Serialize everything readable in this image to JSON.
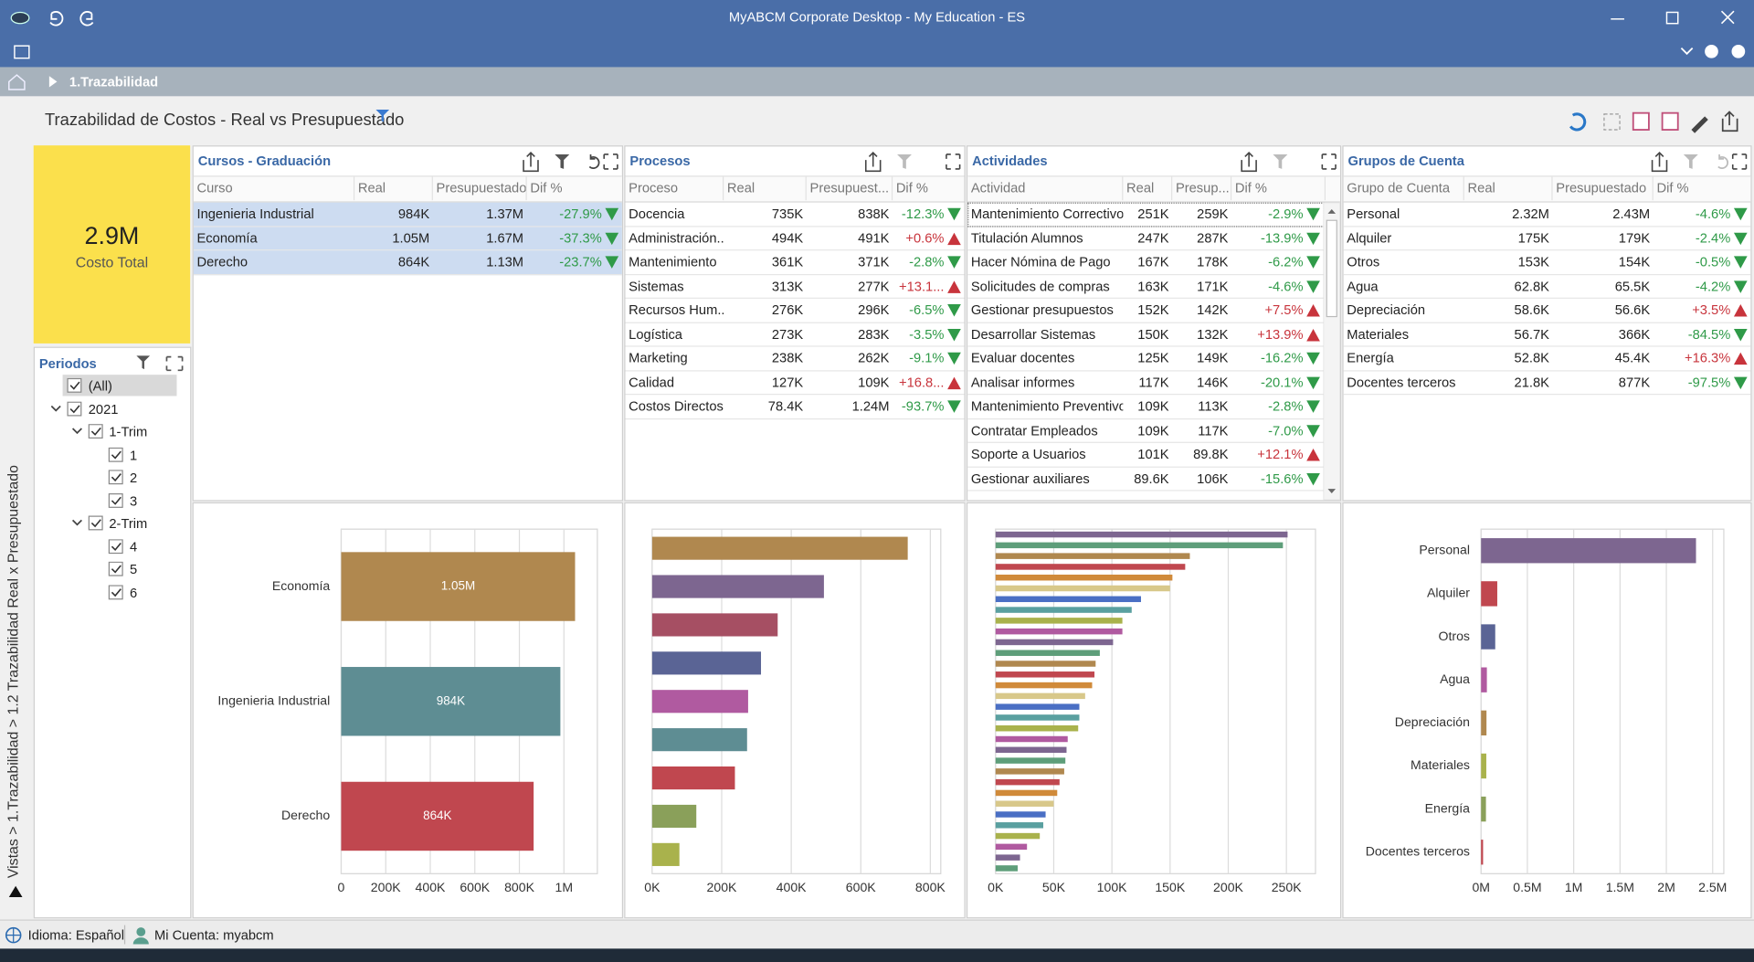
{
  "window": {
    "title": "MyABCM Corporate Desktop - My Education - ES"
  },
  "breadcrumb": "1.Trazabilidad",
  "side_path": "Vistas > 1.Trazabilidad > 1.2 Trazabilidad Real x Presupuestado",
  "dashboard_title": "Trazabilidad de Costos - Real vs Presupuestado",
  "kpi": {
    "value": "2.9M",
    "label": "Costo Total"
  },
  "periods": {
    "title": "Periodos",
    "items": [
      {
        "label": "(All)"
      },
      {
        "label": "2021",
        "children": [
          {
            "label": "1-Trim",
            "children": [
              {
                "label": "1"
              },
              {
                "label": "2"
              },
              {
                "label": "3"
              }
            ]
          },
          {
            "label": "2-Trim",
            "children": [
              {
                "label": "4"
              },
              {
                "label": "5"
              },
              {
                "label": "6"
              }
            ]
          }
        ]
      }
    ]
  },
  "tables": [
    {
      "title": "Cursos - Graduación",
      "columns": [
        "Curso",
        "Real",
        "Presupuestado",
        "Dif %"
      ],
      "rows": [
        [
          "Ingenieria Industrial",
          "984K",
          "1.37M",
          "-27.9%"
        ],
        [
          "Economía",
          "1.05M",
          "1.67M",
          "-37.3%"
        ],
        [
          "Derecho",
          "864K",
          "1.13M",
          "-23.7%"
        ]
      ]
    },
    {
      "title": "Procesos",
      "columns": [
        "Proceso",
        "Real",
        "Presupuest...",
        "Dif %"
      ],
      "rows": [
        [
          "Docencia",
          "735K",
          "838K",
          "-12.3%"
        ],
        [
          "Administración...",
          "494K",
          "491K",
          "+0.6%"
        ],
        [
          "Mantenimiento",
          "361K",
          "371K",
          "-2.8%"
        ],
        [
          "Sistemas",
          "313K",
          "277K",
          "+13.1..."
        ],
        [
          "Recursos Hum...",
          "276K",
          "296K",
          "-6.5%"
        ],
        [
          "Logística",
          "273K",
          "283K",
          "-3.5%"
        ],
        [
          "Marketing",
          "238K",
          "262K",
          "-9.1%"
        ],
        [
          "Calidad",
          "127K",
          "109K",
          "+16.8..."
        ],
        [
          "Costos Directos",
          "78.4K",
          "1.24M",
          "-93.7%"
        ]
      ]
    },
    {
      "title": "Actividades",
      "columns": [
        "Actividad",
        "Real",
        "Presup...",
        "Dif %"
      ],
      "rows": [
        [
          "Mantenimiento Correctivo",
          "251K",
          "259K",
          "-2.9%"
        ],
        [
          "Titulación Alumnos",
          "247K",
          "287K",
          "-13.9%"
        ],
        [
          "Hacer Nómina de Pago",
          "167K",
          "178K",
          "-6.2%"
        ],
        [
          "Solicitudes de compras",
          "163K",
          "171K",
          "-4.6%"
        ],
        [
          "Gestionar presupuestos",
          "152K",
          "142K",
          "+7.5%"
        ],
        [
          "Desarrollar Sistemas",
          "150K",
          "132K",
          "+13.9%"
        ],
        [
          "Evaluar docentes",
          "125K",
          "149K",
          "-16.2%"
        ],
        [
          "Analisar informes",
          "117K",
          "146K",
          "-20.1%"
        ],
        [
          "Mantenimiento Preventivo",
          "109K",
          "113K",
          "-2.8%"
        ],
        [
          "Contratar Empleados",
          "109K",
          "117K",
          "-7.0%"
        ],
        [
          "Soporte a Usuarios",
          "101K",
          "89.8K",
          "+12.1%"
        ],
        [
          "Gestionar auxiliares",
          "89.6K",
          "106K",
          "-15.6%"
        ]
      ]
    },
    {
      "title": "Grupos de Cuenta",
      "columns": [
        "Grupo de Cuenta",
        "Real",
        "Presupuestado",
        "Dif %"
      ],
      "rows": [
        [
          "Personal",
          "2.32M",
          "2.43M",
          "-4.6%"
        ],
        [
          "Alquiler",
          "175K",
          "179K",
          "-2.4%"
        ],
        [
          "Otros",
          "153K",
          "154K",
          "-0.5%"
        ],
        [
          "Agua",
          "62.8K",
          "65.5K",
          "-4.2%"
        ],
        [
          "Depreciación",
          "58.6K",
          "56.6K",
          "+3.5%"
        ],
        [
          "Materiales",
          "56.7K",
          "366K",
          "-84.5%"
        ],
        [
          "Energía",
          "52.8K",
          "45.4K",
          "+16.3%"
        ],
        [
          "Docentes terceros",
          "21.8K",
          "877K",
          "-97.5%"
        ]
      ]
    }
  ],
  "chart_data": [
    {
      "type": "bar",
      "orientation": "horizontal",
      "categories": [
        "Economía",
        "Ingenieria Industrial",
        "Derecho"
      ],
      "values": [
        1050000,
        984000,
        864000
      ],
      "value_labels": [
        "1.05M",
        "984K",
        "864K"
      ],
      "colors": [
        "#b0884f",
        "#5e8d93",
        "#c0474f"
      ],
      "xlim": [
        0,
        1150000
      ],
      "xticks": [
        0,
        {
          "value": 200000,
          "label": "200K"
        },
        {
          "value": 400000,
          "label": "400K"
        },
        {
          "value": 600000,
          "label": "600K"
        },
        {
          "value": 800000,
          "label": "800K"
        },
        {
          "value": 1000000,
          "label": "1M"
        }
      ],
      "grid": true
    },
    {
      "type": "bar",
      "orientation": "horizontal",
      "values": [
        735000,
        494000,
        361000,
        313000,
        276000,
        273000,
        238000,
        127000,
        78400
      ],
      "colors": [
        "#b0884f",
        "#7d6690",
        "#a64f63",
        "#5a6495",
        "#b05aa0",
        "#5e8d93",
        "#c0474f",
        "#8aa05a",
        "#a9b24c"
      ],
      "xlim": [
        0,
        830000
      ],
      "xticks": [
        {
          "value": 0,
          "label": "0K"
        },
        {
          "value": 200000,
          "label": "200K"
        },
        {
          "value": 400000,
          "label": "400K"
        },
        {
          "value": 600000,
          "label": "600K"
        },
        {
          "value": 800000,
          "label": "800K"
        }
      ],
      "grid": true
    },
    {
      "type": "bar",
      "orientation": "horizontal",
      "values": [
        251000,
        247000,
        167000,
        163000,
        152000,
        150000,
        125000,
        117000,
        109000,
        109000,
        101000,
        89600,
        86000,
        85000,
        83000,
        77000,
        72000,
        72000,
        71000,
        62000,
        61000,
        60000,
        59000,
        55000,
        53000,
        50000,
        43000,
        41000,
        38000,
        27000,
        21000,
        19000
      ],
      "palette": [
        "#7d6690",
        "#5e9e7a",
        "#b0884f",
        "#c0474f",
        "#d08a3a",
        "#d8c88a",
        "#4a6fc4",
        "#5aa0a0",
        "#a9b24c",
        "#b05aa0"
      ],
      "xlim": [
        0,
        275000
      ],
      "xticks": [
        {
          "value": 0,
          "label": "0K"
        },
        {
          "value": 50000,
          "label": "50K"
        },
        {
          "value": 100000,
          "label": "100K"
        },
        {
          "value": 150000,
          "label": "150K"
        },
        {
          "value": 200000,
          "label": "200K"
        },
        {
          "value": 250000,
          "label": "250K"
        }
      ],
      "grid": true
    },
    {
      "type": "bar",
      "orientation": "horizontal",
      "categories": [
        "Personal",
        "Alquiler",
        "Otros",
        "Agua",
        "Depreciación",
        "Materiales",
        "Energía",
        "Docentes terceros"
      ],
      "values": [
        2320000,
        175000,
        153000,
        62800,
        58600,
        56700,
        52800,
        21800
      ],
      "colors": [
        "#7d6690",
        "#c0474f",
        "#5a6495",
        "#b05aa0",
        "#b0884f",
        "#a9b24c",
        "#8aa05a",
        "#c0474f"
      ],
      "xlim": [
        0,
        2620000
      ],
      "xticks": [
        {
          "value": 0,
          "label": "0M"
        },
        {
          "value": 500000,
          "label": "0.5M"
        },
        {
          "value": 1000000,
          "label": "1M"
        },
        {
          "value": 1500000,
          "label": "1.5M"
        },
        {
          "value": 2000000,
          "label": "2M"
        },
        {
          "value": 2500000,
          "label": "2.5M"
        }
      ],
      "grid": true
    }
  ],
  "status": {
    "language": "Idioma: Español",
    "account": "Mi Cuenta: myabcm"
  }
}
